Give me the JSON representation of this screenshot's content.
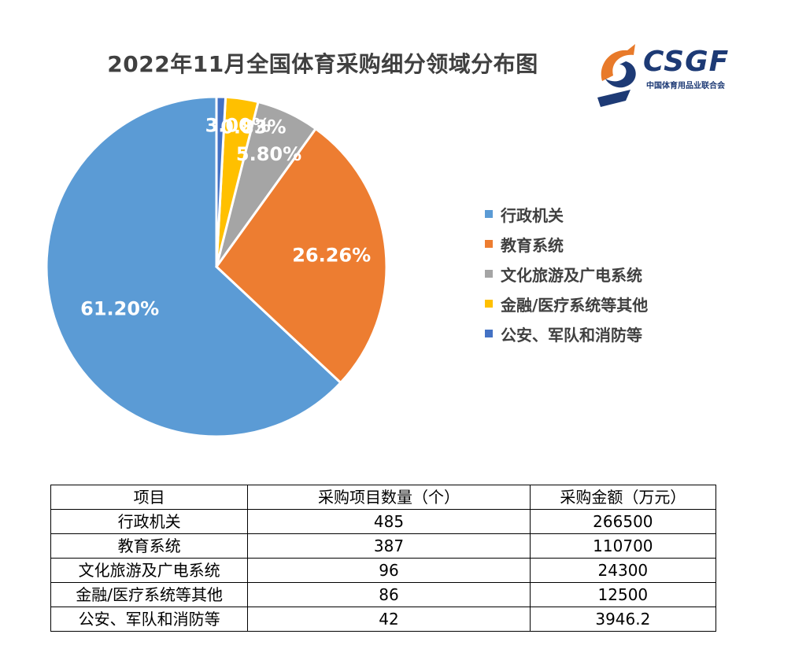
{
  "chart_data": {
    "type": "pie",
    "title": "2022年11月全国体育采购细分领域分布图",
    "slices": [
      {
        "label": "行政机关",
        "value": 61.2,
        "display": "61.20%",
        "color": "#5b9bd5"
      },
      {
        "label": "教育系统",
        "value": 26.26,
        "display": "26.26%",
        "color": "#ed7d31"
      },
      {
        "label": "文化旅游及广电系统",
        "value": 5.8,
        "display": "5.80%",
        "color": "#a5a5a5"
      },
      {
        "label": "金融/医疗系统等其他",
        "value": 3.0,
        "display": "3.00%",
        "color": "#ffc000"
      },
      {
        "label": "公安、军队和消防等",
        "value": 0.83,
        "display": "0.83%",
        "color": "#4472c4"
      }
    ],
    "legend_position": "right"
  },
  "logo": {
    "wordmark": "CSGF",
    "org_name": "中国体育用品业联合会"
  },
  "table": {
    "headers": [
      "项目",
      "采购项目数量（个）",
      "采购金额（万元）"
    ],
    "rows": [
      [
        "行政机关",
        "485",
        "266500"
      ],
      [
        "教育系统",
        "387",
        "110700"
      ],
      [
        "文化旅游及广电系统",
        "96",
        "24300"
      ],
      [
        "金融/医疗系统等其他",
        "86",
        "12500"
      ],
      [
        "公安、军队和消防等",
        "42",
        "3946.2"
      ]
    ]
  }
}
